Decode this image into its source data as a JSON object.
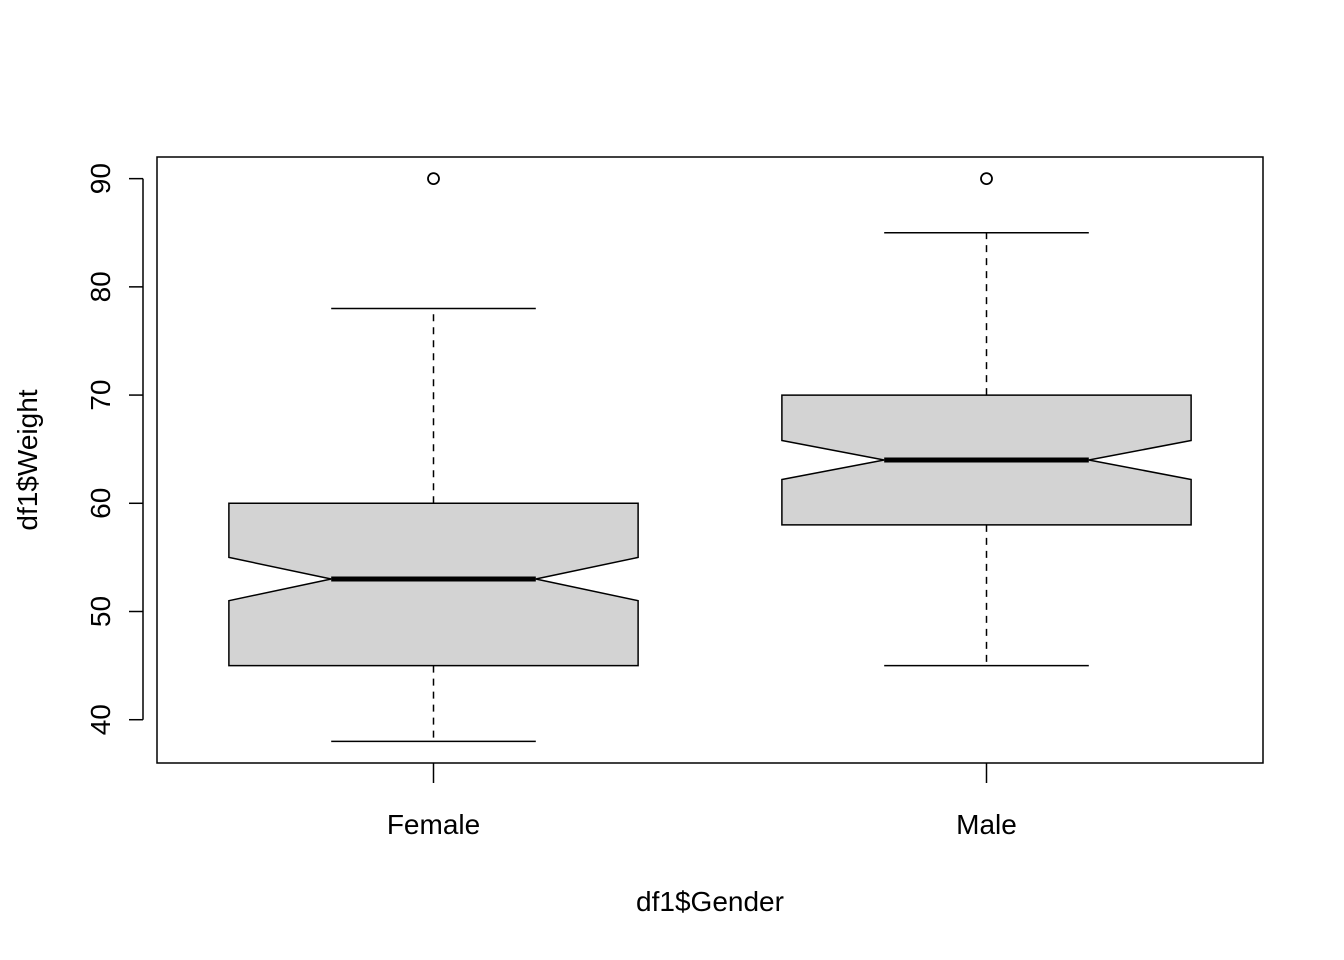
{
  "chart_data": {
    "type": "boxplot",
    "notch": true,
    "title": "",
    "xlabel": "df1$Gender",
    "ylabel": "df1$Weight",
    "ylim": [
      36,
      92
    ],
    "yticks": [
      "40",
      "50",
      "60",
      "70",
      "80",
      "90"
    ],
    "categories": [
      "Female",
      "Male"
    ],
    "box_fill": "#d3d3d3",
    "stroke": "#000000",
    "grid": false,
    "series": [
      {
        "category": "Female",
        "whisker_low": 38,
        "q1": 45,
        "median": 53,
        "q3": 60,
        "whisker_high": 78,
        "notch_low": 51,
        "notch_high": 55,
        "outliers": [
          90
        ]
      },
      {
        "category": "Male",
        "whisker_low": 45,
        "q1": 58,
        "median": 64,
        "q3": 70,
        "whisker_high": 85,
        "notch_low": 62.2,
        "notch_high": 65.8,
        "outliers": [
          90
        ]
      }
    ]
  }
}
